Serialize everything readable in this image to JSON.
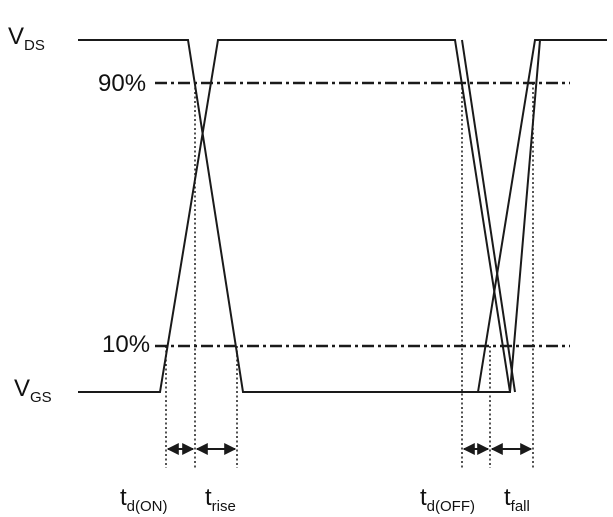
{
  "signals": {
    "vds": {
      "main": "V",
      "sub": "DS"
    },
    "vgs": {
      "main": "V",
      "sub": "GS"
    }
  },
  "levels": {
    "high_pct": "90%",
    "low_pct": "10%"
  },
  "intervals": {
    "td_on": {
      "main": "t",
      "sub": "d(ON)"
    },
    "t_rise": {
      "main": "t",
      "sub": "rise"
    },
    "td_off": {
      "main": "t",
      "sub": "d(OFF)"
    },
    "t_fall": {
      "main": "t",
      "sub": "fall"
    }
  }
}
